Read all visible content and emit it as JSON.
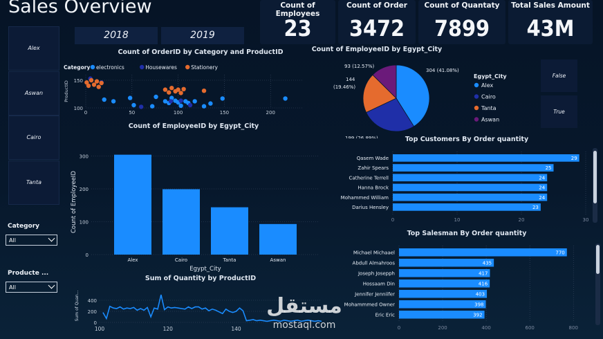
{
  "header": {
    "title": "Sales Overview"
  },
  "kpis": [
    {
      "label": "Count of Employees",
      "value": "23"
    },
    {
      "label": "Count of Order",
      "value": "3472"
    },
    {
      "label": "Count of Quantaty",
      "value": "7899"
    },
    {
      "label": "Total Sales Amount",
      "value": "43M"
    }
  ],
  "year_slicer": [
    "2018",
    "2019"
  ],
  "city_slicer": [
    "Alex",
    "Aswan",
    "Cairo",
    "Tanta"
  ],
  "bool_slicer": [
    "False",
    "True"
  ],
  "filters": {
    "category": {
      "label": "Category",
      "value": "All"
    },
    "product": {
      "label": "Producte ...",
      "value": "All"
    }
  },
  "colors": {
    "blue": "#1a8cff",
    "navy": "#1f2fa8",
    "orange": "#e56b2e",
    "purple": "#6b1a7a"
  },
  "chart_data": [
    {
      "type": "scatter",
      "title": "Count of OrderID by Category and ProductID",
      "ylabel": "ProductID",
      "legend_title": "Category",
      "xlim": [
        0,
        235
      ],
      "ylim": [
        100,
        160
      ],
      "xticks": [
        0,
        50,
        100,
        150,
        200
      ],
      "yticks": [
        100,
        150
      ],
      "series": [
        {
          "name": "electronics",
          "color": "#1a8cff",
          "points": [
            [
              20,
              115
            ],
            [
              30,
              112
            ],
            [
              48,
              118
            ],
            [
              52,
              105
            ],
            [
              72,
              103
            ],
            [
              76,
              120
            ],
            [
              86,
              112
            ],
            [
              90,
              109
            ],
            [
              93,
              118
            ],
            [
              97,
              113
            ],
            [
              100,
              110
            ],
            [
              103,
              104
            ],
            [
              108,
              112
            ],
            [
              111,
              109
            ],
            [
              118,
              112
            ],
            [
              128,
              103
            ],
            [
              135,
              108
            ],
            [
              148,
              117
            ],
            [
              216,
              117
            ]
          ]
        },
        {
          "name": "Housewares",
          "color": "#1f2fa8",
          "points": [
            [
              5,
              153
            ],
            [
              17,
              146
            ],
            [
              60,
              102
            ],
            [
              92,
              112
            ],
            [
              103,
              113
            ],
            [
              113,
              105
            ]
          ]
        },
        {
          "name": "Stationery",
          "color": "#e56b2e",
          "points": [
            [
              1,
              146
            ],
            [
              3,
              140
            ],
            [
              6,
              150
            ],
            [
              9,
              142
            ],
            [
              12,
              148
            ],
            [
              14,
              138
            ],
            [
              17,
              145
            ],
            [
              86,
              133
            ],
            [
              90,
              128
            ],
            [
              93,
              136
            ],
            [
              97,
              130
            ],
            [
              100,
              133
            ],
            [
              103,
              127
            ],
            [
              106,
              134
            ],
            [
              128,
              131
            ]
          ]
        }
      ]
    },
    {
      "type": "pie",
      "title": "Count of EmployeeID by Egypt_City",
      "legend_title": "Egypt_City",
      "slices": [
        {
          "name": "Alex",
          "value": 304,
          "label": "304 (41.08%)",
          "color": "#1a8cff"
        },
        {
          "name": "Cairo",
          "value": 199,
          "label": "199 (26.89%)",
          "color": "#1f2fa8"
        },
        {
          "name": "Tanta",
          "value": 144,
          "label": "144 (19.46%)",
          "color": "#e56b2e"
        },
        {
          "name": "Aswan",
          "value": 93,
          "label": "93 (12.57%)",
          "color": "#6b1a7a"
        }
      ]
    },
    {
      "type": "bar",
      "title": "Count of EmployeeID by Egypt_City",
      "xlabel": "Egypt_City",
      "ylabel": "Count of EmployeeID",
      "categories": [
        "Alex",
        "Cairo",
        "Tanta",
        "Aswan"
      ],
      "values": [
        304,
        199,
        144,
        93
      ],
      "ylim": [
        0,
        320
      ],
      "yticks": [
        0,
        100,
        200,
        300
      ]
    },
    {
      "type": "line",
      "title": "Sum of Quantity by ProductID",
      "ylabel": "Sum of Quan...",
      "xlim": [
        100,
        165
      ],
      "ylim": [
        0,
        600
      ],
      "xticks": [
        100,
        120,
        140
      ],
      "yticks": [
        0,
        200,
        400
      ],
      "x": [
        101,
        102,
        103,
        104,
        105,
        106,
        107,
        108,
        109,
        110,
        111,
        112,
        113,
        114,
        115,
        116,
        117,
        118,
        119,
        120,
        121,
        122,
        123,
        124,
        125,
        126,
        127,
        128,
        129,
        130,
        131,
        132,
        133,
        134,
        135,
        136,
        137,
        138,
        139,
        140,
        141,
        142,
        143,
        144,
        145,
        146,
        147,
        148,
        149,
        150,
        151,
        152,
        153,
        154,
        155,
        156,
        157,
        158,
        159,
        160,
        161,
        162,
        163,
        164,
        165
      ],
      "values": [
        180,
        70,
        290,
        260,
        250,
        280,
        240,
        260,
        250,
        270,
        220,
        250,
        220,
        270,
        100,
        260,
        240,
        500,
        230,
        280,
        260,
        270,
        260,
        250,
        240,
        280,
        250,
        280,
        280,
        240,
        260,
        210,
        240,
        220,
        190,
        160,
        240,
        200,
        180,
        200,
        260,
        210,
        30,
        40,
        50,
        30,
        40,
        30,
        20,
        30,
        40,
        30,
        20,
        40,
        30,
        20,
        30,
        40,
        20,
        30,
        40,
        30,
        20,
        30,
        20
      ]
    },
    {
      "type": "bar",
      "orientation": "horizontal",
      "title": "Top Customers By Order quantity",
      "categories": [
        "Qasem Wade",
        "Zahir Spears",
        "Catherine Terrell",
        "Hanna Brock",
        "Mohammed William",
        "Darius Hensley"
      ],
      "values": [
        29,
        25,
        24,
        24,
        24,
        23
      ],
      "xlim": [
        0,
        30
      ],
      "xticks": [
        0,
        10,
        20,
        30
      ]
    },
    {
      "type": "bar",
      "orientation": "horizontal",
      "title": "Top Salesman By Order quantity",
      "categories": [
        "Michael Michaael",
        "Abdull Almahroos",
        "Joseph Josepph",
        "Hossaam Din",
        "Jennifer Jenniifer",
        "Mohammmed Owner",
        "Eric Eric"
      ],
      "values": [
        770,
        435,
        417,
        416,
        403,
        398,
        392
      ],
      "xlim": [
        0,
        850
      ],
      "xticks": [
        0,
        200,
        400,
        600,
        800
      ]
    }
  ]
}
